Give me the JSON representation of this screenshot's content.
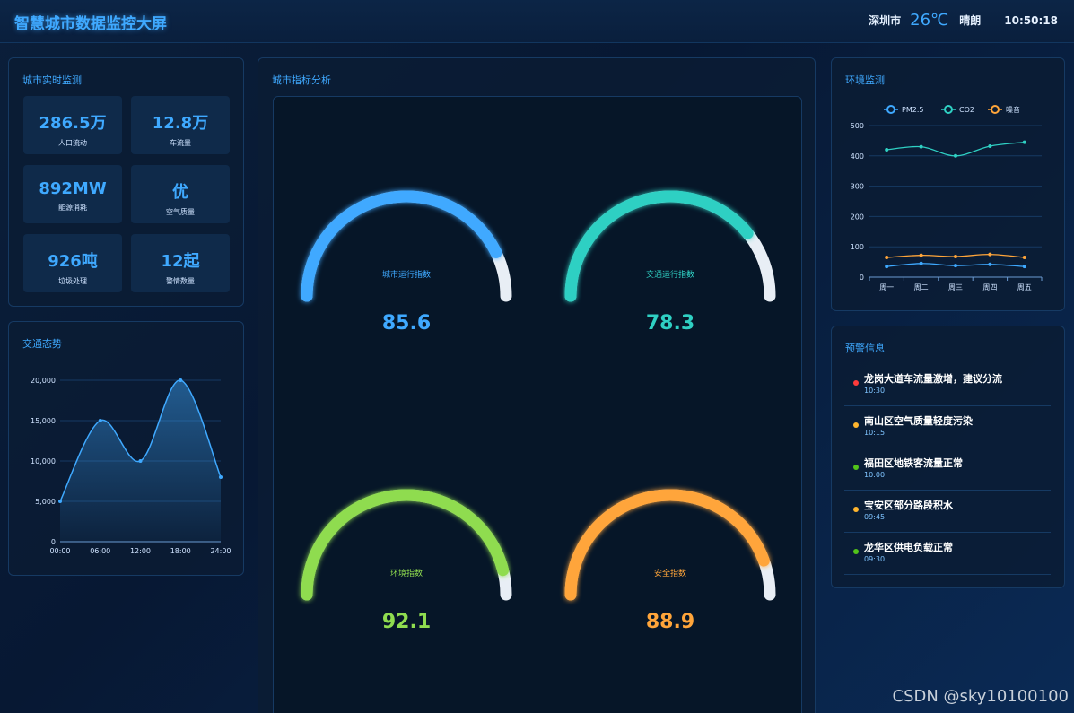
{
  "header": {
    "title": "智慧城市数据监控大屏",
    "city": "深圳市",
    "temperature": "26℃",
    "weather": "晴朗",
    "time": "10:50:18"
  },
  "realtime": {
    "title": "城市实时监测",
    "stats": [
      {
        "value": "286.5万",
        "label": "人口流动"
      },
      {
        "value": "12.8万",
        "label": "车流量"
      },
      {
        "value": "892MW",
        "label": "能源消耗"
      },
      {
        "value": "优",
        "label": "空气质量"
      },
      {
        "value": "926吨",
        "label": "垃圾处理"
      },
      {
        "value": "12起",
        "label": "警情数量"
      }
    ]
  },
  "traffic": {
    "title": "交通态势"
  },
  "indicators": {
    "title": "城市指标分析",
    "gauges": [
      {
        "label": "城市运行指数",
        "value": "85.6",
        "fraction": 0.856,
        "color": "#3fa9ff"
      },
      {
        "label": "交通运行指数",
        "value": "78.3",
        "fraction": 0.783,
        "color": "#2fd0c3"
      },
      {
        "label": "环境指数",
        "value": "92.1",
        "fraction": 0.921,
        "color": "#8fdc4f"
      },
      {
        "label": "安全指数",
        "value": "88.9",
        "fraction": 0.889,
        "color": "#ffa53a"
      }
    ]
  },
  "environment": {
    "title": "环境监测"
  },
  "alerts": {
    "title": "预警信息",
    "items": [
      {
        "message": "龙岗大道车流量激增，建议分流",
        "time": "10:30",
        "color": "#ff3b3b"
      },
      {
        "message": "南山区空气质量轻度污染",
        "time": "10:15",
        "color": "#ffb52e"
      },
      {
        "message": "福田区地铁客流量正常",
        "time": "10:00",
        "color": "#52c41a"
      },
      {
        "message": "宝安区部分路段积水",
        "time": "09:45",
        "color": "#ffb52e"
      },
      {
        "message": "龙华区供电负载正常",
        "time": "09:30",
        "color": "#52c41a"
      }
    ]
  },
  "watermark": "CSDN @sky10100100",
  "chart_data": [
    {
      "type": "area",
      "title": "交通态势",
      "categories": [
        "00:00",
        "06:00",
        "12:00",
        "18:00",
        "24:00"
      ],
      "values": [
        5000,
        15000,
        10000,
        20000,
        8000
      ],
      "ylim": [
        0,
        20000
      ],
      "yticks": [
        "0",
        "5,000",
        "10,000",
        "15,000",
        "20,000"
      ],
      "xticks": [
        "00:00",
        "06:00",
        "12:00",
        "18:00",
        "24:00"
      ],
      "color": "#3fa9ff"
    },
    {
      "type": "line",
      "title": "环境监测",
      "categories": [
        "周一",
        "周二",
        "周三",
        "周四",
        "周五"
      ],
      "ylim": [
        0,
        500
      ],
      "yticks": [
        "0",
        "100",
        "200",
        "300",
        "400",
        "500"
      ],
      "legend": [
        "PM2.5",
        "CO2",
        "噪音"
      ],
      "series": [
        {
          "name": "PM2.5",
          "values": [
            35,
            45,
            38,
            42,
            35
          ],
          "color": "#3fa9ff"
        },
        {
          "name": "CO2",
          "values": [
            420,
            430,
            400,
            432,
            445
          ],
          "color": "#2fd0c3"
        },
        {
          "name": "噪音",
          "values": [
            65,
            72,
            68,
            75,
            65
          ],
          "color": "#ffa53a"
        }
      ]
    }
  ]
}
